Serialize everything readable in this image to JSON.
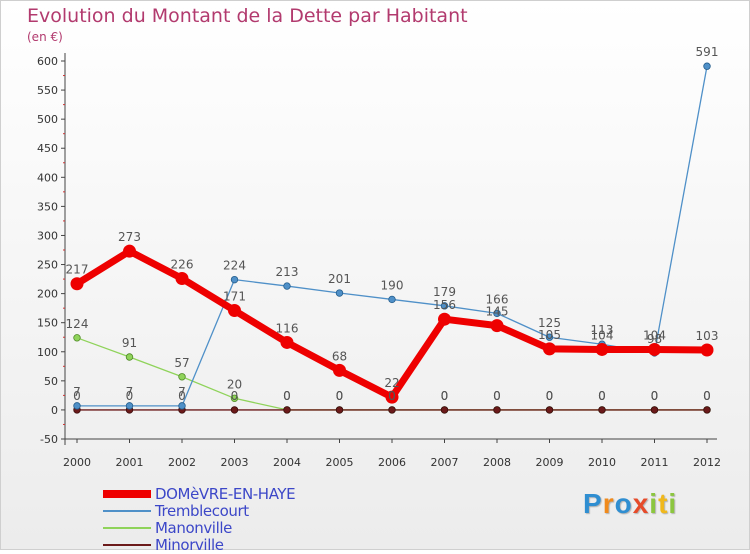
{
  "chart_data": {
    "type": "line",
    "title": "Evolution du Montant de la Dette par Habitant",
    "subtitle": "(en €)",
    "xlabel": "",
    "ylabel": "",
    "categories": [
      "2000",
      "2001",
      "2002",
      "2003",
      "2004",
      "2005",
      "2006",
      "2007",
      "2008",
      "2009",
      "2010",
      "2011",
      "2012"
    ],
    "ylim": [
      -50,
      600
    ],
    "yticks": [
      -50,
      0,
      50,
      100,
      150,
      200,
      250,
      300,
      350,
      400,
      450,
      500,
      550,
      600
    ],
    "grid": false,
    "legend_position": "bottom-left",
    "series": [
      {
        "name": "DOMèVRE-EN-HAYE",
        "color": "#ee0000",
        "values": [
          217,
          273,
          226,
          171,
          116,
          68,
          22,
          156,
          145,
          105,
          104,
          104,
          103
        ]
      },
      {
        "name": "Tremblecourt",
        "color": "#4f90c8",
        "values": [
          7,
          7,
          7,
          224,
          213,
          201,
          190,
          179,
          166,
          125,
          113,
          98,
          591
        ]
      },
      {
        "name": "Manonville",
        "color": "#8fd35a",
        "values": [
          124,
          91,
          57,
          20,
          0,
          0,
          0,
          0,
          0,
          0,
          0,
          0,
          0
        ]
      },
      {
        "name": "Minorville",
        "color": "#6b1a1a",
        "values": [
          0,
          0,
          0,
          0,
          0,
          0,
          0,
          0,
          0,
          0,
          0,
          0,
          0
        ]
      }
    ],
    "data_labels": [
      {
        "series": 0,
        "labels": [
          "217",
          "273",
          "226",
          "171",
          "116",
          "68",
          "22",
          "156",
          "145",
          "105",
          "104",
          "104",
          "103"
        ]
      },
      {
        "series": 1,
        "labels": [
          "7",
          "7",
          "7",
          "224",
          "213",
          "201",
          "190",
          "179",
          "166",
          "125",
          "113",
          "98",
          "591"
        ]
      },
      {
        "series": 2,
        "labels": [
          "124",
          "91",
          "57",
          "20",
          "0",
          "0",
          "0",
          "0",
          "0",
          "0",
          "0",
          "0",
          "0"
        ]
      },
      {
        "series": 3,
        "labels": [
          "0",
          "0",
          "0",
          "0",
          "0",
          "0",
          "0",
          "0",
          "0",
          "0",
          "0",
          "0",
          "0"
        ]
      }
    ]
  },
  "logo": {
    "letters": [
      "P",
      "r",
      "o",
      "x",
      "i",
      "t",
      "i"
    ],
    "colors": [
      "#2f8ed1",
      "#f08a1c",
      "#2f8ed1",
      "#e64b2a",
      "#8cc63f",
      "#f0b81c",
      "#8cc63f"
    ]
  }
}
